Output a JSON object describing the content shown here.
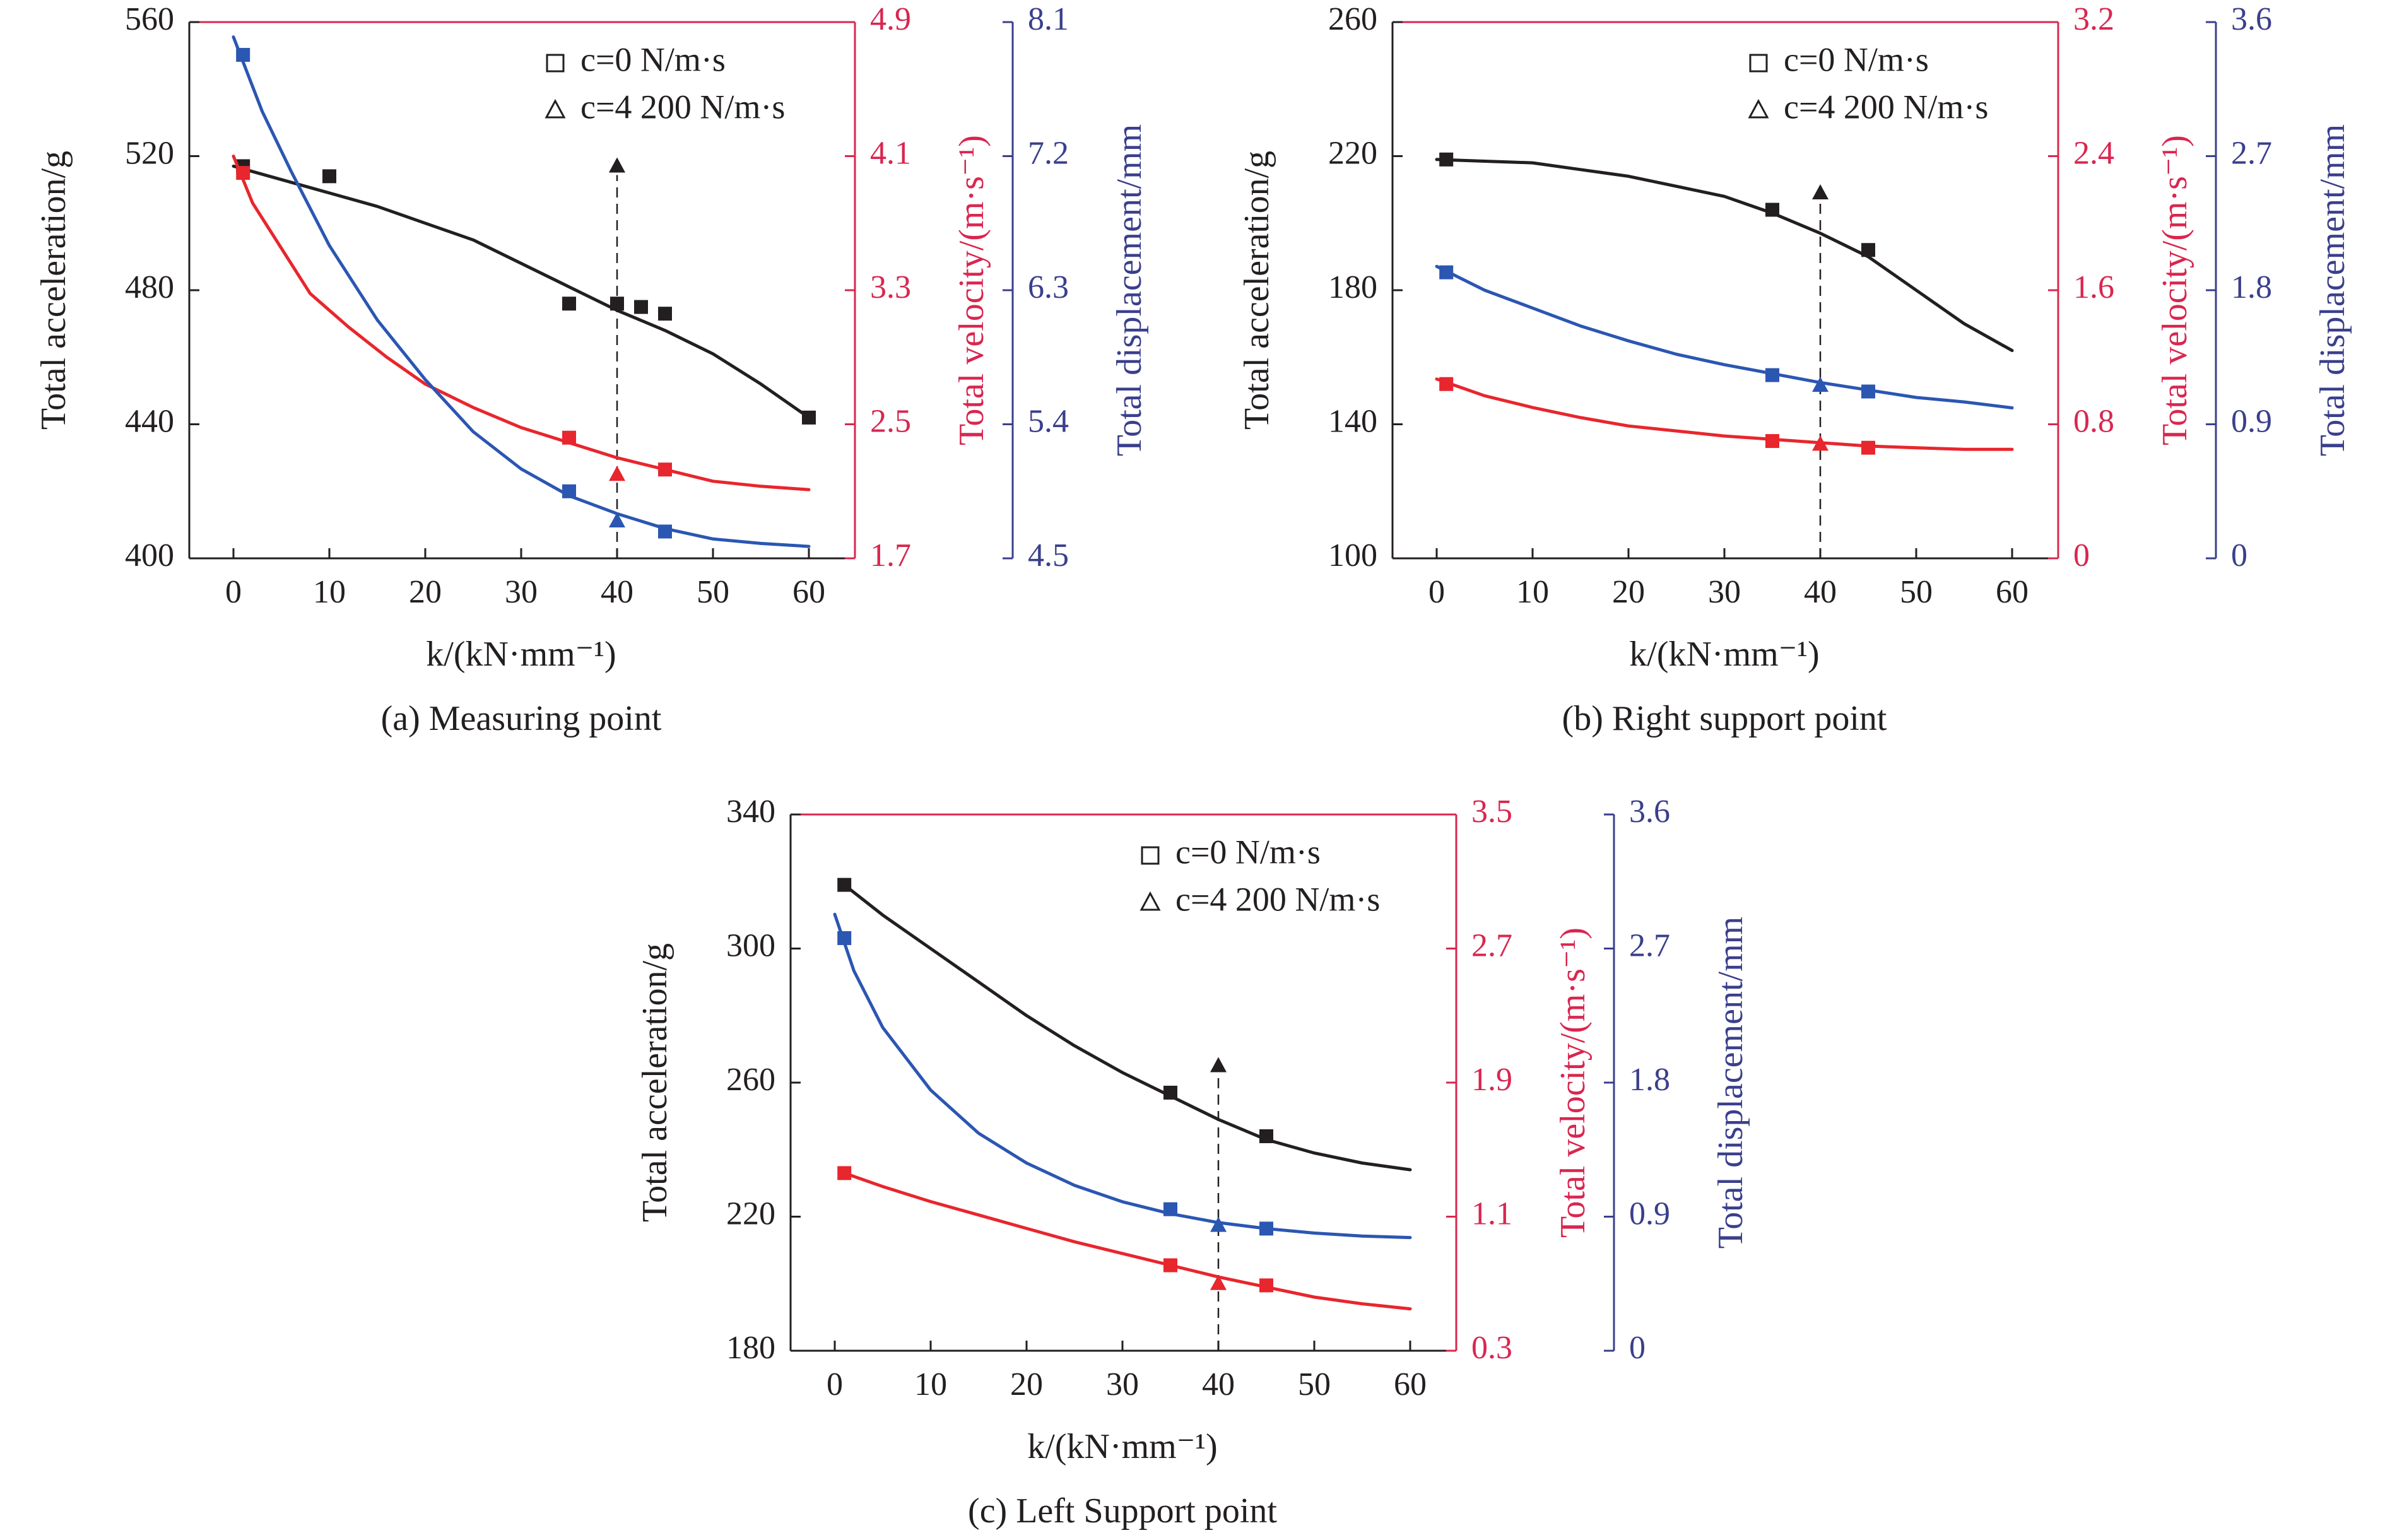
{
  "legend": {
    "c0": "c=0 N/m·s",
    "c4200": "c=4 200 N/m·s"
  },
  "colors": {
    "acceleration": "#231f20",
    "velocity": "#e8262d",
    "displacement": "#2b56b2",
    "velocity_axis": "#d9264f",
    "displacement_axis": "#3a3f8c"
  },
  "chart_data": [
    {
      "type": "line",
      "caption": "(a) Measuring point",
      "xlabel": "k/(kN·mm⁻¹)",
      "xlim": [
        0,
        60
      ],
      "xticks": [
        "0",
        "10",
        "20",
        "30",
        "40",
        "50",
        "60"
      ],
      "axes": {
        "acceleration": {
          "label": "Total acceleration/g",
          "range": [
            400,
            560
          ],
          "ticks": [
            "400",
            "440",
            "480",
            "520",
            "560"
          ]
        },
        "velocity": {
          "label": "Total velocity/(m·s⁻¹)",
          "range": [
            1.7,
            4.9
          ],
          "ticks": [
            "1.7",
            "2.5",
            "3.3",
            "4.1",
            "4.9"
          ]
        },
        "displacement": {
          "label": "Total displacement/mm",
          "range": [
            4.5,
            8.1
          ],
          "ticks": [
            "4.5",
            "5.4",
            "6.3",
            "7.2",
            "8.1"
          ]
        }
      },
      "series": [
        {
          "quantity": "acceleration",
          "legend": "c0",
          "curve": [
            [
              0,
              517
            ],
            [
              5,
              513
            ],
            [
              10,
              509
            ],
            [
              15,
              505
            ],
            [
              20,
              500
            ],
            [
              25,
              495
            ],
            [
              30,
              488
            ],
            [
              35,
              481
            ],
            [
              40,
              474
            ],
            [
              45,
              468
            ],
            [
              50,
              461
            ],
            [
              55,
              452
            ],
            [
              60,
              442
            ]
          ],
          "points": [
            [
              1,
              517
            ],
            [
              10,
              514
            ],
            [
              35,
              476
            ],
            [
              40,
              476
            ],
            [
              42.5,
              475
            ],
            [
              45,
              473
            ],
            [
              60,
              442
            ]
          ]
        },
        {
          "quantity": "velocity",
          "legend": "c0",
          "curve": [
            [
              0,
              4.1
            ],
            [
              2,
              3.82
            ],
            [
              5,
              3.55
            ],
            [
              8,
              3.28
            ],
            [
              12,
              3.08
            ],
            [
              16,
              2.9
            ],
            [
              20,
              2.74
            ],
            [
              25,
              2.6
            ],
            [
              30,
              2.48
            ],
            [
              35,
              2.39
            ],
            [
              40,
              2.3
            ],
            [
              45,
              2.23
            ],
            [
              50,
              2.16
            ],
            [
              55,
              2.13
            ],
            [
              60,
              2.11
            ]
          ],
          "points": [
            [
              1,
              4.0
            ],
            [
              35,
              2.42
            ],
            [
              45,
              2.23
            ]
          ]
        },
        {
          "quantity": "displacement",
          "legend": "c0",
          "curve": [
            [
              0,
              8.0
            ],
            [
              3,
              7.5
            ],
            [
              6,
              7.1
            ],
            [
              10,
              6.6
            ],
            [
              15,
              6.1
            ],
            [
              20,
              5.7
            ],
            [
              25,
              5.35
            ],
            [
              30,
              5.1
            ],
            [
              35,
              4.92
            ],
            [
              40,
              4.8
            ],
            [
              45,
              4.7
            ],
            [
              50,
              4.63
            ],
            [
              55,
              4.6
            ],
            [
              60,
              4.58
            ]
          ],
          "points": [
            [
              1,
              7.88
            ],
            [
              35,
              4.95
            ],
            [
              45,
              4.68
            ]
          ]
        },
        {
          "quantity": "acceleration",
          "legend": "c4200",
          "points": [
            [
              40,
              517
            ]
          ]
        },
        {
          "quantity": "velocity",
          "legend": "c4200",
          "points": [
            [
              40,
              2.2
            ]
          ]
        },
        {
          "quantity": "displacement",
          "legend": "c4200",
          "points": [
            [
              40,
              4.75
            ]
          ]
        }
      ]
    },
    {
      "type": "line",
      "caption": "(b) Right support point",
      "xlabel": "k/(kN·mm⁻¹)",
      "xlim": [
        0,
        60
      ],
      "xticks": [
        "0",
        "10",
        "20",
        "30",
        "40",
        "50",
        "60"
      ],
      "axes": {
        "acceleration": {
          "label": "Total acceleration/g",
          "range": [
            100,
            260
          ],
          "ticks": [
            "100",
            "140",
            "180",
            "220",
            "260"
          ]
        },
        "velocity": {
          "label": "Total velocity/(m·s⁻¹)",
          "range": [
            0,
            3.2
          ],
          "ticks": [
            "0",
            "0.8",
            "1.6",
            "2.4",
            "3.2"
          ]
        },
        "displacement": {
          "label": "Total displacement/mm",
          "range": [
            0,
            3.6
          ],
          "ticks": [
            "0",
            "0.9",
            "1.8",
            "2.7",
            "3.6"
          ]
        }
      },
      "series": [
        {
          "quantity": "acceleration",
          "legend": "c0",
          "curve": [
            [
              0,
              219
            ],
            [
              5,
              218.5
            ],
            [
              10,
              218
            ],
            [
              15,
              216
            ],
            [
              20,
              214
            ],
            [
              25,
              211
            ],
            [
              30,
              208
            ],
            [
              35,
              203
            ],
            [
              40,
              197
            ],
            [
              45,
              190
            ],
            [
              50,
              180
            ],
            [
              55,
              170
            ],
            [
              60,
              162
            ]
          ],
          "points": [
            [
              1,
              219
            ],
            [
              35,
              204
            ],
            [
              45,
              192
            ]
          ]
        },
        {
          "quantity": "velocity",
          "legend": "c0",
          "curve": [
            [
              0,
              1.07
            ],
            [
              5,
              0.97
            ],
            [
              10,
              0.9
            ],
            [
              15,
              0.84
            ],
            [
              20,
              0.79
            ],
            [
              25,
              0.76
            ],
            [
              30,
              0.73
            ],
            [
              35,
              0.71
            ],
            [
              40,
              0.69
            ],
            [
              45,
              0.67
            ],
            [
              50,
              0.66
            ],
            [
              55,
              0.65
            ],
            [
              60,
              0.65
            ]
          ],
          "points": [
            [
              1,
              1.04
            ],
            [
              35,
              0.7
            ],
            [
              45,
              0.66
            ]
          ]
        },
        {
          "quantity": "displacement",
          "legend": "c0",
          "curve": [
            [
              0,
              1.96
            ],
            [
              5,
              1.8
            ],
            [
              10,
              1.68
            ],
            [
              15,
              1.56
            ],
            [
              20,
              1.46
            ],
            [
              25,
              1.37
            ],
            [
              30,
              1.3
            ],
            [
              35,
              1.24
            ],
            [
              40,
              1.18
            ],
            [
              45,
              1.13
            ],
            [
              50,
              1.08
            ],
            [
              55,
              1.05
            ],
            [
              60,
              1.01
            ]
          ],
          "points": [
            [
              1,
              1.92
            ],
            [
              35,
              1.23
            ],
            [
              45,
              1.12
            ]
          ]
        },
        {
          "quantity": "acceleration",
          "legend": "c4200",
          "points": [
            [
              40,
              209
            ]
          ]
        },
        {
          "quantity": "velocity",
          "legend": "c4200",
          "points": [
            [
              40,
              0.68
            ]
          ]
        },
        {
          "quantity": "displacement",
          "legend": "c4200",
          "points": [
            [
              40,
              1.16
            ]
          ]
        }
      ]
    },
    {
      "type": "line",
      "caption": "(c) Left Support point",
      "xlabel": "k/(kN·mm⁻¹)",
      "xlim": [
        0,
        60
      ],
      "xticks": [
        "0",
        "10",
        "20",
        "30",
        "40",
        "50",
        "60"
      ],
      "axes": {
        "acceleration": {
          "label": "Total acceleration/g",
          "range": [
            180,
            340
          ],
          "ticks": [
            "180",
            "220",
            "260",
            "300",
            "340"
          ]
        },
        "velocity": {
          "label": "Total velocity/(m·s⁻¹)",
          "range": [
            0.3,
            3.5
          ],
          "ticks": [
            "0.3",
            "1.1",
            "1.9",
            "2.7",
            "3.5"
          ]
        },
        "displacement": {
          "label": "Total displacement/mm",
          "range": [
            0,
            3.6
          ],
          "ticks": [
            "0",
            "0.9",
            "1.8",
            "2.7",
            "3.6"
          ]
        }
      },
      "series": [
        {
          "quantity": "acceleration",
          "legend": "c0",
          "curve": [
            [
              1,
              319
            ],
            [
              5,
              310
            ],
            [
              10,
              300
            ],
            [
              15,
              290
            ],
            [
              20,
              280
            ],
            [
              25,
              271
            ],
            [
              30,
              263
            ],
            [
              35,
              256
            ],
            [
              40,
              249
            ],
            [
              45,
              243
            ],
            [
              50,
              239
            ],
            [
              55,
              236
            ],
            [
              60,
              234
            ]
          ],
          "points": [
            [
              1,
              319
            ],
            [
              35,
              257
            ],
            [
              45,
              244
            ]
          ]
        },
        {
          "quantity": "velocity",
          "legend": "c0",
          "curve": [
            [
              1,
              1.36
            ],
            [
              5,
              1.28
            ],
            [
              10,
              1.19
            ],
            [
              15,
              1.11
            ],
            [
              20,
              1.03
            ],
            [
              25,
              0.95
            ],
            [
              30,
              0.88
            ],
            [
              35,
              0.81
            ],
            [
              40,
              0.74
            ],
            [
              45,
              0.68
            ],
            [
              50,
              0.62
            ],
            [
              55,
              0.58
            ],
            [
              60,
              0.55
            ]
          ],
          "points": [
            [
              1,
              1.36
            ],
            [
              35,
              0.81
            ],
            [
              45,
              0.69
            ]
          ]
        },
        {
          "quantity": "displacement",
          "legend": "c0",
          "curve": [
            [
              0,
              2.93
            ],
            [
              2,
              2.55
            ],
            [
              5,
              2.17
            ],
            [
              10,
              1.75
            ],
            [
              15,
              1.46
            ],
            [
              20,
              1.26
            ],
            [
              25,
              1.11
            ],
            [
              30,
              1.0
            ],
            [
              35,
              0.92
            ],
            [
              40,
              0.86
            ],
            [
              45,
              0.82
            ],
            [
              50,
              0.79
            ],
            [
              55,
              0.77
            ],
            [
              60,
              0.76
            ]
          ],
          "points": [
            [
              1,
              2.77
            ],
            [
              35,
              0.95
            ],
            [
              45,
              0.82
            ]
          ]
        },
        {
          "quantity": "acceleration",
          "legend": "c4200",
          "points": [
            [
              40,
              265
            ]
          ]
        },
        {
          "quantity": "velocity",
          "legend": "c4200",
          "points": [
            [
              40,
              0.7
            ]
          ]
        },
        {
          "quantity": "displacement",
          "legend": "c4200",
          "points": [
            [
              40,
              0.84
            ]
          ]
        }
      ]
    }
  ]
}
